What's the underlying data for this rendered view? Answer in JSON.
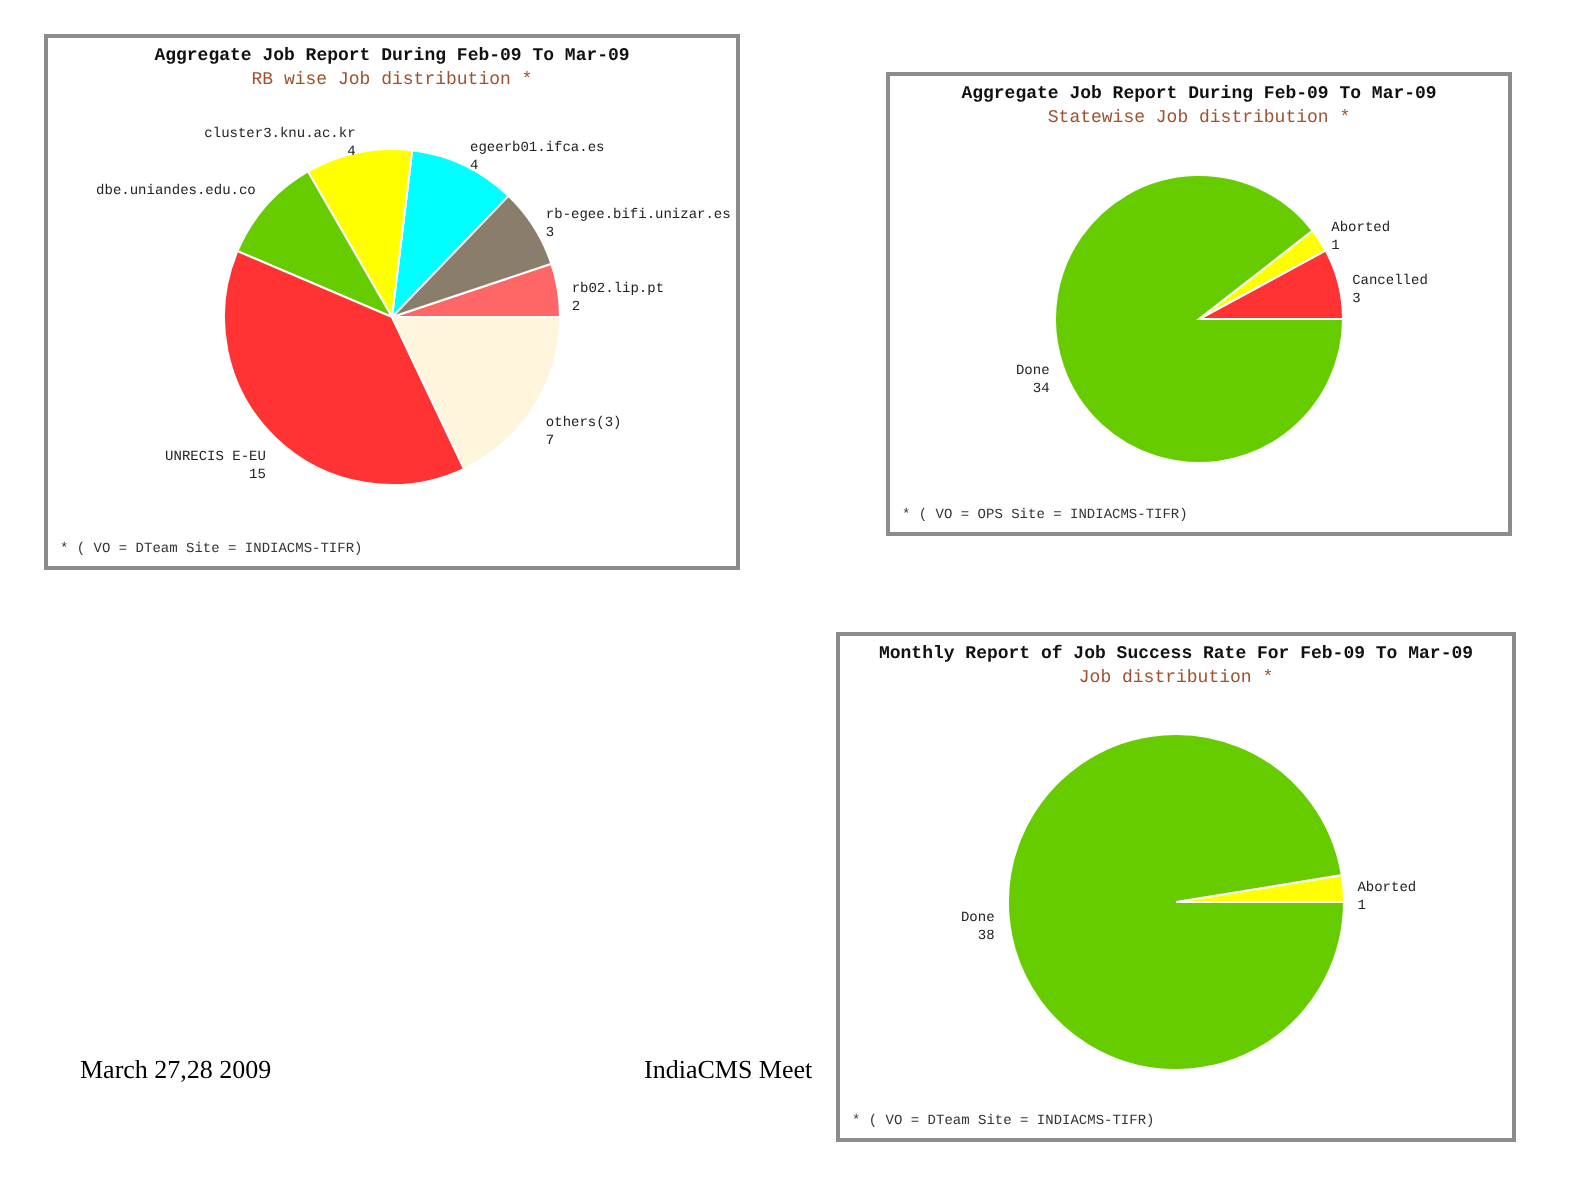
{
  "chart_data": [
    {
      "type": "pie",
      "title": "Aggregate Job Report During Feb-09 To Mar-09",
      "subtitle": "RB wise Job distribution *",
      "categories": [
        "rb02.lip.pt",
        "rb-egee.bifi.unizar.es",
        "egeerb01.ifca.es",
        "cluster3.knu.ac.kr",
        "dbe.uniandes.edu.co",
        "UNRECIS E-EU",
        "others(3)"
      ],
      "values": [
        2,
        3,
        4,
        4,
        4,
        15,
        7
      ],
      "value_labels": [
        "2",
        "3",
        "4",
        "4",
        null,
        "15",
        "7"
      ],
      "colors": [
        "#ff6666",
        "#8b7d6b",
        "#00ffff",
        "#ffff00",
        "#66cc00",
        "#ff3333",
        "#fff5dc"
      ],
      "annotations": [
        "* ( VO = DTeam Site = INDIACMS-TIFR)",
        "March 27,28 2009",
        "IndiaCMS Meet"
      ]
    },
    {
      "type": "pie",
      "title": "Aggregate Job Report During Feb-09 To Mar-09",
      "subtitle": "Statewise Job distribution *",
      "categories": [
        "Cancelled",
        "Aborted",
        "Done"
      ],
      "values": [
        3,
        1,
        34
      ],
      "colors": [
        "#ff3333",
        "#ffff00",
        "#66cc00"
      ],
      "data_labels": true,
      "annotations": [
        "* ( VO = OPS Site = INDIACMS-TIFR)"
      ]
    },
    {
      "type": "pie",
      "title": "Monthly Report of Job Success Rate For Feb-09 To Mar-09",
      "subtitle": "Job distribution *",
      "categories": [
        "Aborted",
        "Done"
      ],
      "values": [
        1,
        38
      ],
      "colors": [
        "#ffff00",
        "#66cc00"
      ],
      "data_labels": true,
      "annotations": [
        "* ( VO = DTeam Site = INDIACMS-TIFR)"
      ]
    }
  ]
}
